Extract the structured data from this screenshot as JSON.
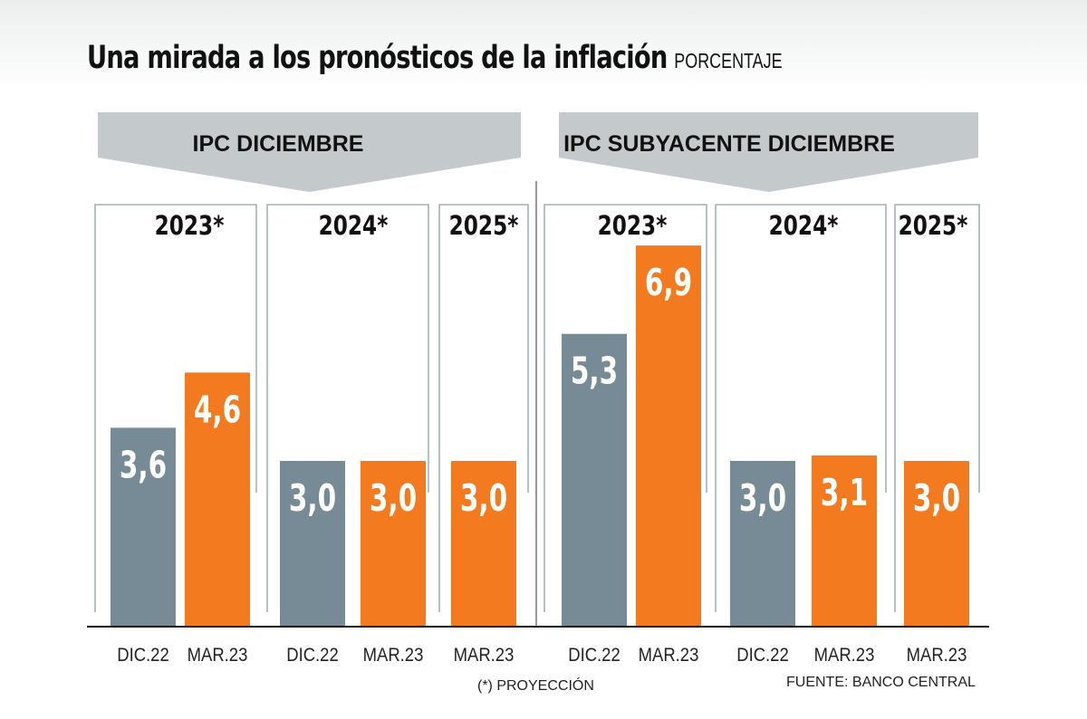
{
  "title": "Una mirada a los pronósticos de la inflación",
  "subtitle": "PORCENTAJE",
  "colors": {
    "dic": "#768b95",
    "mar": "#f47a1f",
    "banner": "#c4cacb",
    "frame": "#8fa0a8"
  },
  "chart_data": [
    {
      "type": "bar",
      "panel": "IPC DICIEMBRE",
      "groups": [
        {
          "year": "2023*",
          "bars": [
            {
              "label": "DIC.22",
              "value": 3.6,
              "text": "3,6",
              "kind": "dic"
            },
            {
              "label": "MAR.23",
              "value": 4.6,
              "text": "4,6",
              "kind": "mar"
            }
          ]
        },
        {
          "year": "2024*",
          "bars": [
            {
              "label": "DIC.22",
              "value": 3.0,
              "text": "3,0",
              "kind": "dic"
            },
            {
              "label": "MAR.23",
              "value": 3.0,
              "text": "3,0",
              "kind": "mar"
            }
          ]
        },
        {
          "year": "2025*",
          "bars": [
            {
              "label": "MAR.23",
              "value": 3.0,
              "text": "3,0",
              "kind": "mar"
            }
          ]
        }
      ]
    },
    {
      "type": "bar",
      "panel": "IPC SUBYACENTE DICIEMBRE",
      "groups": [
        {
          "year": "2023*",
          "bars": [
            {
              "label": "DIC.22",
              "value": 5.3,
              "text": "5,3",
              "kind": "dic"
            },
            {
              "label": "MAR.23",
              "value": 6.9,
              "text": "6,9",
              "kind": "mar"
            }
          ]
        },
        {
          "year": "2024*",
          "bars": [
            {
              "label": "DIC.22",
              "value": 3.0,
              "text": "3,0",
              "kind": "dic"
            },
            {
              "label": "MAR.23",
              "value": 3.1,
              "text": "3,1",
              "kind": "mar"
            }
          ]
        },
        {
          "year": "2025*",
          "bars": [
            {
              "label": "MAR.23",
              "value": 3.0,
              "text": "3,0",
              "kind": "mar"
            }
          ]
        }
      ]
    }
  ],
  "footnote": "(*) PROYECCIÓN",
  "source": "FUENTE: BANCO CENTRAL"
}
